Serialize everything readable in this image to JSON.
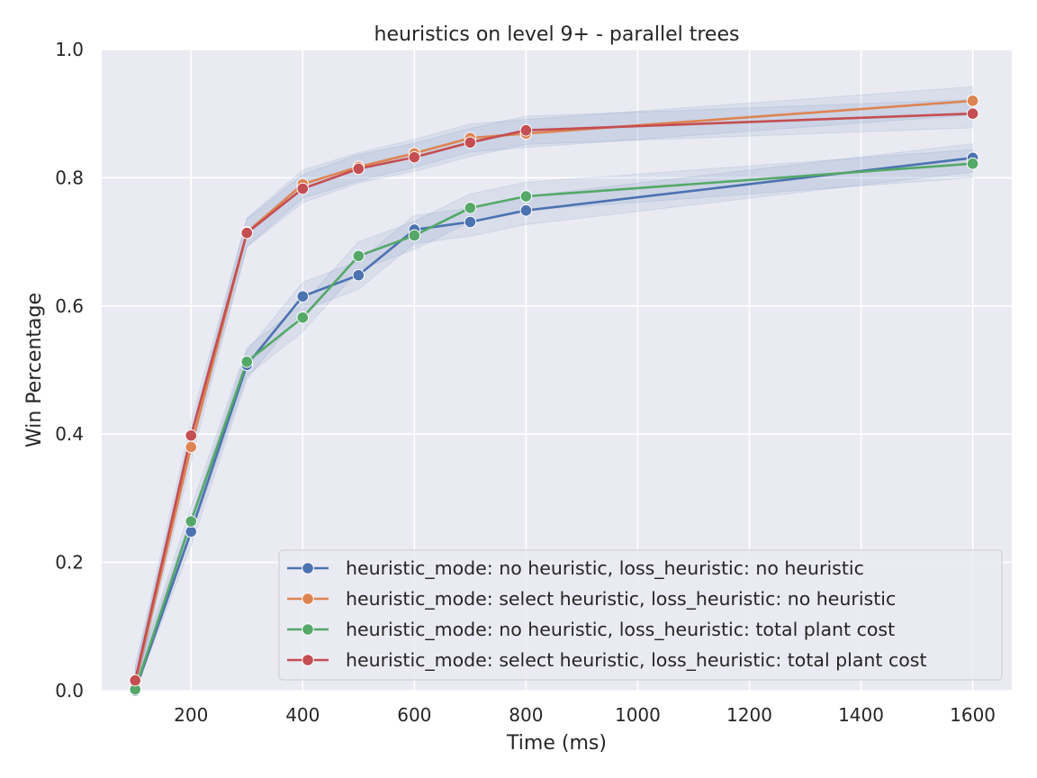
{
  "chart_data": {
    "type": "line",
    "title": "heuristics on level 9+ - parallel trees",
    "xlabel": "Time (ms)",
    "ylabel": "Win Percentage",
    "xlim": [
      40,
      1670
    ],
    "ylim": [
      0.0,
      1.0
    ],
    "xticks": [
      200,
      400,
      600,
      800,
      1000,
      1200,
      1400,
      1600
    ],
    "yticks": [
      0.0,
      0.2,
      0.4,
      0.6,
      0.8,
      1.0
    ],
    "xtick_labels": [
      "200",
      "400",
      "600",
      "800",
      "1000",
      "1200",
      "1400",
      "1600"
    ],
    "ytick_labels": [
      "0.0",
      "0.2",
      "0.4",
      "0.6",
      "0.8",
      "1.0"
    ],
    "grid": true,
    "legend_position": "bottom-right",
    "x": [
      100,
      200,
      300,
      400,
      500,
      600,
      700,
      800,
      1600
    ],
    "series": [
      {
        "name": "heuristic_mode: no heuristic, loss_heuristic: no heuristic",
        "color": "#4c72b0",
        "values": [
          0.0,
          0.248,
          0.508,
          0.615,
          0.648,
          0.719,
          0.731,
          0.749,
          0.831
        ]
      },
      {
        "name": "heuristic_mode: select heuristic, loss_heuristic: no heuristic",
        "color": "#dd8452",
        "values": [
          0.012,
          0.38,
          0.715,
          0.79,
          0.817,
          0.838,
          0.862,
          0.869,
          0.92
        ]
      },
      {
        "name": "heuristic_mode: no heuristic, loss_heuristic: total plant cost",
        "color": "#55a868",
        "values": [
          0.002,
          0.264,
          0.513,
          0.582,
          0.678,
          0.71,
          0.753,
          0.771,
          0.822
        ]
      },
      {
        "name": "heuristic_mode: select heuristic, loss_heuristic: total plant cost",
        "color": "#c44e52",
        "values": [
          0.016,
          0.398,
          0.714,
          0.783,
          0.814,
          0.832,
          0.855,
          0.874,
          0.9
        ]
      }
    ],
    "band_color": "#4c72b0",
    "background_color": "#eaeaf2",
    "grid_color": "#ffffff"
  }
}
